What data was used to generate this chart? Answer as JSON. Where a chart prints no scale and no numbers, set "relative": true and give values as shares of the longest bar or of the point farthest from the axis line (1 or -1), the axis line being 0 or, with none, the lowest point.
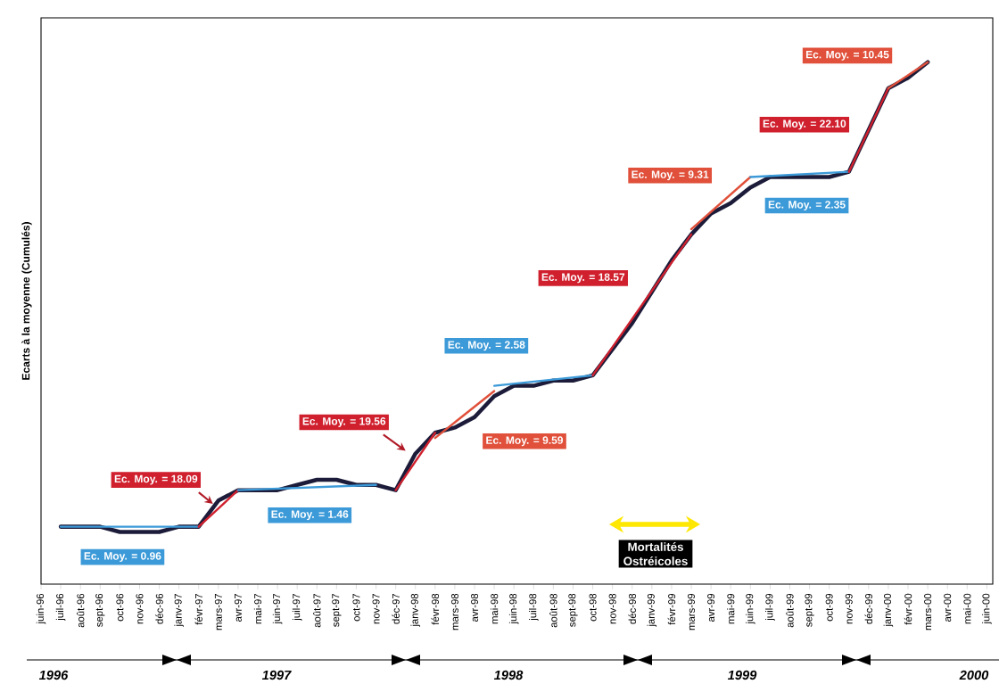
{
  "chart_data": {
    "type": "line",
    "relative": true,
    "ylabel": "Ecarts à la moyenne (Cumulés)",
    "marker": "none",
    "categories": [
      "juin-96",
      "juil-96",
      "août-96",
      "sept-96",
      "oct-96",
      "nov-96",
      "déc-96",
      "janv-97",
      "févr-97",
      "mars-97",
      "avr-97",
      "mai-97",
      "juin-97",
      "juil-97",
      "août-97",
      "sept-97",
      "oct-97",
      "nov-97",
      "déc-97",
      "janv-98",
      "févr-98",
      "mars-98",
      "avr-98",
      "mai-98",
      "juin-98",
      "juil-98",
      "août-98",
      "sept-98",
      "oct-98",
      "nov-98",
      "déc-98",
      "janv-99",
      "févr-99",
      "mars-99",
      "avr-99",
      "mai-99",
      "juin-99",
      "juil-99",
      "août-99",
      "sept-99",
      "oct-99",
      "nov-99",
      "déc-99",
      "janv-00",
      "févr-00",
      "mars-00",
      "avr-00",
      "mai-00",
      "juin-00"
    ],
    "series": [
      {
        "color": "#1c1c3a",
        "values": [
          null,
          0.11,
          0.11,
          0.11,
          0.1,
          0.1,
          0.1,
          0.11,
          0.11,
          0.16,
          0.18,
          0.18,
          0.18,
          0.19,
          0.2,
          0.2,
          0.19,
          0.19,
          0.18,
          0.25,
          0.29,
          0.3,
          0.32,
          0.36,
          0.38,
          0.38,
          0.39,
          0.39,
          0.4,
          0.45,
          0.5,
          0.56,
          0.62,
          0.67,
          0.71,
          0.73,
          0.76,
          0.78,
          0.78,
          0.78,
          0.78,
          0.79,
          0.87,
          0.95,
          0.97,
          1,
          null,
          null,
          null
        ]
      },
      {
        "name": "Ec. Moy. = 0.96",
        "color": "#3c9ad8",
        "values": [
          null,
          0.11,
          null,
          null,
          null,
          null,
          null,
          null,
          0.11,
          null,
          null,
          null,
          null,
          null,
          null,
          null,
          null,
          null,
          null,
          null,
          null,
          null,
          null,
          null,
          null,
          null,
          null,
          null,
          null,
          null,
          null,
          null,
          null,
          null,
          null,
          null,
          null,
          null,
          null,
          null,
          null,
          null,
          null,
          null,
          null,
          null,
          null,
          null,
          null
        ]
      },
      {
        "name": "Ec. Moy. = 18.09",
        "color": "#d0202e",
        "values": [
          null,
          null,
          null,
          null,
          null,
          null,
          null,
          null,
          0.11,
          null,
          0.18,
          null,
          null,
          null,
          null,
          null,
          null,
          null,
          null,
          null,
          null,
          null,
          null,
          null,
          null,
          null,
          null,
          null,
          null,
          null,
          null,
          null,
          null,
          null,
          null,
          null,
          null,
          null,
          null,
          null,
          null,
          null,
          null,
          null,
          null,
          null,
          null,
          null,
          null
        ]
      },
      {
        "name": "Ec. Moy. = 1.46",
        "color": "#3c9ad8",
        "values": [
          null,
          null,
          null,
          null,
          null,
          null,
          null,
          null,
          null,
          null,
          0.18,
          null,
          null,
          null,
          null,
          null,
          null,
          0.19,
          null,
          null,
          null,
          null,
          null,
          null,
          null,
          null,
          null,
          null,
          null,
          null,
          null,
          null,
          null,
          null,
          null,
          null,
          null,
          null,
          null,
          null,
          null,
          null,
          null,
          null,
          null,
          null,
          null,
          null,
          null
        ]
      },
      {
        "name": "Ec. Moy. = 19.56",
        "color": "#d0202e",
        "values": [
          null,
          null,
          null,
          null,
          null,
          null,
          null,
          null,
          null,
          null,
          null,
          null,
          null,
          null,
          null,
          null,
          null,
          null,
          0.18,
          null,
          0.29,
          null,
          null,
          null,
          null,
          null,
          null,
          null,
          null,
          null,
          null,
          null,
          null,
          null,
          null,
          null,
          null,
          null,
          null,
          null,
          null,
          null,
          null,
          null,
          null,
          null,
          null,
          null,
          null
        ]
      },
      {
        "name": "Ec. Moy. = 9.59",
        "color": "#e0503a",
        "values": [
          null,
          null,
          null,
          null,
          null,
          null,
          null,
          null,
          null,
          null,
          null,
          null,
          null,
          null,
          null,
          null,
          null,
          null,
          null,
          null,
          0.28,
          null,
          null,
          0.37,
          null,
          null,
          null,
          null,
          null,
          null,
          null,
          null,
          null,
          null,
          null,
          null,
          null,
          null,
          null,
          null,
          null,
          null,
          null,
          null,
          null,
          null,
          null,
          null,
          null
        ]
      },
      {
        "name": "Ec. Moy. = 2.58",
        "color": "#3c9ad8",
        "values": [
          null,
          null,
          null,
          null,
          null,
          null,
          null,
          null,
          null,
          null,
          null,
          null,
          null,
          null,
          null,
          null,
          null,
          null,
          null,
          null,
          null,
          null,
          null,
          0.38,
          null,
          null,
          null,
          null,
          0.4,
          null,
          null,
          null,
          null,
          null,
          null,
          null,
          null,
          null,
          null,
          null,
          null,
          null,
          null,
          null,
          null,
          null,
          null,
          null,
          null
        ]
      },
      {
        "name": "Ec. Moy. = 18.57",
        "color": "#d0202e",
        "values": [
          null,
          null,
          null,
          null,
          null,
          null,
          null,
          null,
          null,
          null,
          null,
          null,
          null,
          null,
          null,
          null,
          null,
          null,
          null,
          null,
          null,
          null,
          null,
          null,
          null,
          null,
          null,
          null,
          0.4,
          null,
          null,
          null,
          null,
          0.67,
          null,
          null,
          null,
          null,
          null,
          null,
          null,
          null,
          null,
          null,
          null,
          null,
          null,
          null,
          null
        ]
      },
      {
        "name": "Ec. Moy. = 9.31",
        "color": "#e0503a",
        "values": [
          null,
          null,
          null,
          null,
          null,
          null,
          null,
          null,
          null,
          null,
          null,
          null,
          null,
          null,
          null,
          null,
          null,
          null,
          null,
          null,
          null,
          null,
          null,
          null,
          null,
          null,
          null,
          null,
          null,
          null,
          null,
          null,
          null,
          0.68,
          null,
          null,
          0.78,
          null,
          null,
          null,
          null,
          null,
          null,
          null,
          null,
          null,
          null,
          null,
          null
        ]
      },
      {
        "name": "Ec. Moy. = 2.35",
        "color": "#3c9ad8",
        "values": [
          null,
          null,
          null,
          null,
          null,
          null,
          null,
          null,
          null,
          null,
          null,
          null,
          null,
          null,
          null,
          null,
          null,
          null,
          null,
          null,
          null,
          null,
          null,
          null,
          null,
          null,
          null,
          null,
          null,
          null,
          null,
          null,
          null,
          null,
          null,
          null,
          0.78,
          null,
          null,
          null,
          null,
          0.79,
          null,
          null,
          null,
          null,
          null,
          null,
          null
        ]
      },
      {
        "name": "Ec. Moy. = 22.10",
        "color": "#d0202e",
        "values": [
          null,
          null,
          null,
          null,
          null,
          null,
          null,
          null,
          null,
          null,
          null,
          null,
          null,
          null,
          null,
          null,
          null,
          null,
          null,
          null,
          null,
          null,
          null,
          null,
          null,
          null,
          null,
          null,
          null,
          null,
          null,
          null,
          null,
          null,
          null,
          null,
          null,
          null,
          null,
          null,
          null,
          0.79,
          null,
          0.95,
          null,
          null,
          null,
          null,
          null
        ]
      },
      {
        "name": "Ec. Moy. = 10.45",
        "color": "#e0503a",
        "values": [
          null,
          null,
          null,
          null,
          null,
          null,
          null,
          null,
          null,
          null,
          null,
          null,
          null,
          null,
          null,
          null,
          null,
          null,
          null,
          null,
          null,
          null,
          null,
          null,
          null,
          null,
          null,
          null,
          null,
          null,
          null,
          null,
          null,
          null,
          null,
          null,
          null,
          null,
          null,
          null,
          null,
          null,
          null,
          0.95,
          null,
          1,
          null,
          null,
          null
        ]
      }
    ],
    "annotations": [
      "Mortalités Ostréicoles",
      "1996",
      "1997",
      "1998",
      "1999",
      "2000"
    ]
  }
}
